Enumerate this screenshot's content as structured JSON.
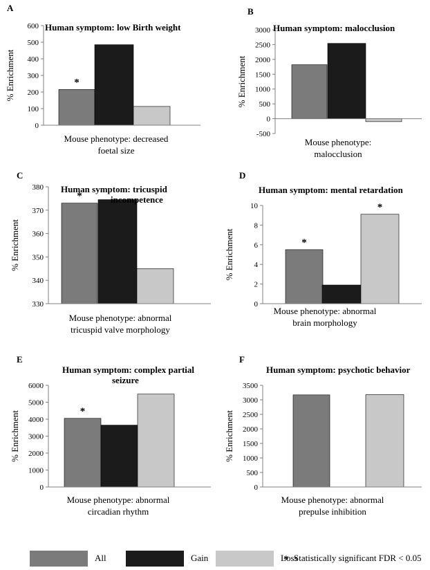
{
  "colors": {
    "All": "#7b7b7b",
    "Gain": "#1b1b1b",
    "Loss": "#c8c8c8",
    "axis": "#7f7f7f"
  },
  "legend": {
    "items": [
      {
        "key": "All",
        "label": "All"
      },
      {
        "key": "Gain",
        "label": "Gain"
      },
      {
        "key": "Loss",
        "label": "Loss"
      }
    ],
    "note_symbol": "*",
    "note_text": "Statistically significant FDR < 0.05"
  },
  "chart_data": [
    {
      "type": "bar",
      "panel": "A",
      "title": [
        "Human symptom: low Birth weight"
      ],
      "ylabel": "% Enrichment",
      "xlabel": [
        "Mouse phenotype: decreased",
        "foetal size"
      ],
      "ylim": [
        0,
        600
      ],
      "yticks": [
        0,
        100,
        200,
        300,
        400,
        500,
        600
      ],
      "series": [
        {
          "name": "All",
          "value": 215,
          "significant": true
        },
        {
          "name": "Gain",
          "value": 485,
          "significant": false
        },
        {
          "name": "Loss",
          "value": 113,
          "significant": false
        }
      ]
    },
    {
      "type": "bar",
      "panel": "B",
      "title": [
        "Human symptom: malocclusion"
      ],
      "ylabel": "% Enrichment",
      "xlabel": [
        "Mouse phenotype:",
        "malocclusion"
      ],
      "ylim": [
        -500,
        3000
      ],
      "yticks": [
        -500,
        0,
        500,
        1000,
        1500,
        2000,
        2500,
        3000
      ],
      "series": [
        {
          "name": "All",
          "value": 1820,
          "significant": false
        },
        {
          "name": "Gain",
          "value": 2540,
          "significant": false
        },
        {
          "name": "Loss",
          "value": -100,
          "significant": false
        }
      ]
    },
    {
      "type": "bar",
      "panel": "C",
      "title": [
        "Human symptom: tricuspid",
        "incompetence"
      ],
      "ylabel": "% Enrichment",
      "xlabel": [
        "Mouse phenotype: abnormal",
        "tricuspid valve morphology"
      ],
      "ylim": [
        330,
        380
      ],
      "yticks": [
        330,
        340,
        350,
        360,
        370,
        380
      ],
      "series": [
        {
          "name": "All",
          "value": 373,
          "significant": true
        },
        {
          "name": "Gain",
          "value": 374.5,
          "significant": false
        },
        {
          "name": "Loss",
          "value": 345,
          "significant": false
        }
      ]
    },
    {
      "type": "bar",
      "panel": "D",
      "title": [
        "Human symptom: mental retardation"
      ],
      "ylabel": "% Enrichment",
      "xlabel": [
        "Mouse phenotype: abnormal",
        "brain morphology"
      ],
      "ylim": [
        0,
        10
      ],
      "yticks": [
        0,
        2,
        4,
        6,
        8,
        10
      ],
      "series": [
        {
          "name": "All",
          "value": 5.5,
          "significant": true
        },
        {
          "name": "Gain",
          "value": 1.9,
          "significant": false
        },
        {
          "name": "Loss",
          "value": 9.1,
          "significant": true
        }
      ]
    },
    {
      "type": "bar",
      "panel": "E",
      "title": [
        "Human symptom: complex partial",
        "seizure"
      ],
      "ylabel": "% Enrichment",
      "xlabel": [
        "Mouse phenotype: abnormal",
        "circadian rhythm"
      ],
      "ylim": [
        0,
        6000
      ],
      "yticks": [
        0,
        1000,
        2000,
        3000,
        4000,
        5000,
        6000
      ],
      "series": [
        {
          "name": "All",
          "value": 4050,
          "significant": true
        },
        {
          "name": "Gain",
          "value": 3650,
          "significant": false
        },
        {
          "name": "Loss",
          "value": 5480,
          "significant": false
        }
      ]
    },
    {
      "type": "bar",
      "panel": "F",
      "title": [
        "Human symptom: psychotic behavior"
      ],
      "ylabel": "% Enrichment",
      "xlabel": [
        "Mouse phenotype: abnormal",
        "prepulse inhibition"
      ],
      "ylim": [
        0,
        3500
      ],
      "yticks": [
        0,
        500,
        1000,
        1500,
        2000,
        2500,
        3000,
        3500
      ],
      "series": [
        {
          "name": "All",
          "value": 3170,
          "significant": false
        },
        {
          "name": "Loss",
          "value": 3180,
          "significant": false
        }
      ]
    }
  ]
}
